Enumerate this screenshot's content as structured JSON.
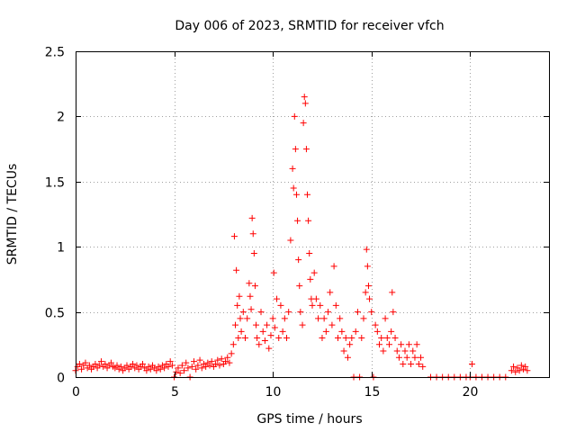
{
  "chart_data": {
    "type": "scatter",
    "title": "Day 006 of 2023, SRMTID for receiver vfch",
    "xlabel": "GPS time / hours",
    "ylabel": "SRMTID / TECUs",
    "xlim": [
      0,
      24
    ],
    "ylim": [
      0,
      2.5
    ],
    "x_ticks": [
      0,
      5,
      10,
      15,
      20
    ],
    "x_tick_labels": [
      "0",
      "5",
      "10",
      "15",
      "20"
    ],
    "y_ticks": [
      0,
      0.5,
      1,
      1.5,
      2,
      2.5
    ],
    "y_tick_labels": [
      "0",
      "0.5",
      "1",
      "1.5",
      "2",
      "2.5"
    ],
    "grid": true,
    "marker": "plus",
    "series": [
      {
        "name": "SRMTID",
        "color": "#ff0000",
        "points": [
          [
            0.0,
            0.05
          ],
          [
            0.1,
            0.08
          ],
          [
            0.2,
            0.1
          ],
          [
            0.3,
            0.06
          ],
          [
            0.4,
            0.09
          ],
          [
            0.5,
            0.11
          ],
          [
            0.6,
            0.07
          ],
          [
            0.7,
            0.09
          ],
          [
            0.8,
            0.06
          ],
          [
            0.9,
            0.08
          ],
          [
            1.0,
            0.1
          ],
          [
            1.1,
            0.07
          ],
          [
            1.2,
            0.09
          ],
          [
            1.3,
            0.12
          ],
          [
            1.4,
            0.08
          ],
          [
            1.5,
            0.1
          ],
          [
            1.6,
            0.07
          ],
          [
            1.7,
            0.09
          ],
          [
            1.8,
            0.11
          ],
          [
            1.9,
            0.08
          ],
          [
            2.0,
            0.07
          ],
          [
            2.1,
            0.09
          ],
          [
            2.2,
            0.06
          ],
          [
            2.3,
            0.08
          ],
          [
            2.4,
            0.05
          ],
          [
            2.5,
            0.07
          ],
          [
            2.6,
            0.09
          ],
          [
            2.7,
            0.06
          ],
          [
            2.8,
            0.08
          ],
          [
            2.9,
            0.1
          ],
          [
            3.0,
            0.07
          ],
          [
            3.1,
            0.09
          ],
          [
            3.2,
            0.06
          ],
          [
            3.3,
            0.08
          ],
          [
            3.4,
            0.1
          ],
          [
            3.5,
            0.07
          ],
          [
            3.6,
            0.05
          ],
          [
            3.7,
            0.08
          ],
          [
            3.8,
            0.06
          ],
          [
            3.9,
            0.09
          ],
          [
            4.0,
            0.07
          ],
          [
            4.1,
            0.05
          ],
          [
            4.2,
            0.08
          ],
          [
            4.3,
            0.06
          ],
          [
            4.4,
            0.09
          ],
          [
            4.5,
            0.07
          ],
          [
            4.6,
            0.1
          ],
          [
            4.7,
            0.08
          ],
          [
            4.8,
            0.12
          ],
          [
            4.9,
            0.09
          ],
          [
            5.0,
            0.0
          ],
          [
            5.1,
            0.04
          ],
          [
            5.2,
            0.07
          ],
          [
            5.3,
            0.03
          ],
          [
            5.4,
            0.09
          ],
          [
            5.5,
            0.05
          ],
          [
            5.6,
            0.11
          ],
          [
            5.7,
            0.07
          ],
          [
            5.8,
            0.0
          ],
          [
            5.9,
            0.08
          ],
          [
            6.0,
            0.12
          ],
          [
            6.1,
            0.06
          ],
          [
            6.2,
            0.09
          ],
          [
            6.3,
            0.13
          ],
          [
            6.4,
            0.07
          ],
          [
            6.5,
            0.1
          ],
          [
            6.6,
            0.08
          ],
          [
            6.7,
            0.11
          ],
          [
            6.8,
            0.09
          ],
          [
            6.9,
            0.12
          ],
          [
            7.0,
            0.08
          ],
          [
            7.1,
            0.1
          ],
          [
            7.2,
            0.13
          ],
          [
            7.3,
            0.09
          ],
          [
            7.4,
            0.14
          ],
          [
            7.5,
            0.1
          ],
          [
            7.6,
            0.12
          ],
          [
            7.7,
            0.15
          ],
          [
            7.8,
            0.11
          ],
          [
            7.9,
            0.18
          ],
          [
            8.0,
            0.25
          ],
          [
            8.05,
            1.08
          ],
          [
            8.1,
            0.4
          ],
          [
            8.15,
            0.82
          ],
          [
            8.2,
            0.55
          ],
          [
            8.25,
            0.3
          ],
          [
            8.3,
            0.62
          ],
          [
            8.35,
            0.45
          ],
          [
            8.4,
            0.35
          ],
          [
            8.5,
            0.5
          ],
          [
            8.6,
            0.3
          ],
          [
            8.7,
            0.45
          ],
          [
            8.8,
            0.72
          ],
          [
            8.85,
            0.62
          ],
          [
            8.9,
            0.52
          ],
          [
            8.95,
            1.22
          ],
          [
            9.0,
            1.1
          ],
          [
            9.05,
            0.95
          ],
          [
            9.1,
            0.7
          ],
          [
            9.15,
            0.4
          ],
          [
            9.2,
            0.3
          ],
          [
            9.3,
            0.25
          ],
          [
            9.4,
            0.5
          ],
          [
            9.5,
            0.35
          ],
          [
            9.6,
            0.28
          ],
          [
            9.7,
            0.4
          ],
          [
            9.8,
            0.22
          ],
          [
            9.9,
            0.32
          ],
          [
            10.0,
            0.45
          ],
          [
            10.05,
            0.8
          ],
          [
            10.1,
            0.38
          ],
          [
            10.2,
            0.6
          ],
          [
            10.3,
            0.3
          ],
          [
            10.4,
            0.55
          ],
          [
            10.5,
            0.35
          ],
          [
            10.6,
            0.45
          ],
          [
            10.7,
            0.3
          ],
          [
            10.8,
            0.5
          ],
          [
            10.9,
            1.05
          ],
          [
            11.0,
            1.6
          ],
          [
            11.05,
            1.45
          ],
          [
            11.1,
            2.0
          ],
          [
            11.15,
            1.75
          ],
          [
            11.2,
            1.4
          ],
          [
            11.25,
            1.2
          ],
          [
            11.3,
            0.9
          ],
          [
            11.35,
            0.7
          ],
          [
            11.4,
            0.5
          ],
          [
            11.5,
            0.4
          ],
          [
            11.55,
            1.95
          ],
          [
            11.6,
            2.15
          ],
          [
            11.65,
            2.1
          ],
          [
            11.7,
            1.75
          ],
          [
            11.75,
            1.4
          ],
          [
            11.8,
            1.2
          ],
          [
            11.85,
            0.95
          ],
          [
            11.9,
            0.75
          ],
          [
            11.95,
            0.6
          ],
          [
            12.0,
            0.55
          ],
          [
            12.1,
            0.8
          ],
          [
            12.2,
            0.6
          ],
          [
            12.3,
            0.45
          ],
          [
            12.4,
            0.55
          ],
          [
            12.5,
            0.3
          ],
          [
            12.6,
            0.45
          ],
          [
            12.7,
            0.35
          ],
          [
            12.8,
            0.5
          ],
          [
            12.9,
            0.65
          ],
          [
            13.0,
            0.4
          ],
          [
            13.1,
            0.85
          ],
          [
            13.2,
            0.55
          ],
          [
            13.3,
            0.3
          ],
          [
            13.4,
            0.45
          ],
          [
            13.5,
            0.35
          ],
          [
            13.6,
            0.2
          ],
          [
            13.7,
            0.3
          ],
          [
            13.8,
            0.15
          ],
          [
            13.9,
            0.25
          ],
          [
            14.0,
            0.3
          ],
          [
            14.1,
            0.0
          ],
          [
            14.2,
            0.35
          ],
          [
            14.3,
            0.5
          ],
          [
            14.4,
            0.0
          ],
          [
            14.5,
            0.3
          ],
          [
            14.6,
            0.45
          ],
          [
            14.7,
            0.65
          ],
          [
            14.75,
            0.98
          ],
          [
            14.8,
            0.85
          ],
          [
            14.85,
            0.7
          ],
          [
            14.9,
            0.6
          ],
          [
            15.0,
            0.5
          ],
          [
            15.1,
            0.0
          ],
          [
            15.2,
            0.4
          ],
          [
            15.3,
            0.35
          ],
          [
            15.4,
            0.25
          ],
          [
            15.5,
            0.3
          ],
          [
            15.6,
            0.2
          ],
          [
            15.7,
            0.45
          ],
          [
            15.8,
            0.3
          ],
          [
            15.9,
            0.25
          ],
          [
            16.0,
            0.35
          ],
          [
            16.05,
            0.65
          ],
          [
            16.1,
            0.5
          ],
          [
            16.2,
            0.3
          ],
          [
            16.3,
            0.2
          ],
          [
            16.4,
            0.15
          ],
          [
            16.5,
            0.25
          ],
          [
            16.6,
            0.1
          ],
          [
            16.7,
            0.2
          ],
          [
            16.8,
            0.15
          ],
          [
            16.9,
            0.25
          ],
          [
            17.0,
            0.1
          ],
          [
            17.1,
            0.2
          ],
          [
            17.2,
            0.15
          ],
          [
            17.3,
            0.25
          ],
          [
            17.4,
            0.1
          ],
          [
            17.5,
            0.15
          ],
          [
            17.6,
            0.08
          ],
          [
            18.0,
            0.0
          ],
          [
            18.3,
            0.0
          ],
          [
            18.6,
            0.0
          ],
          [
            18.9,
            0.0
          ],
          [
            19.2,
            0.0
          ],
          [
            19.5,
            0.0
          ],
          [
            19.8,
            0.0
          ],
          [
            20.0,
            0.0
          ],
          [
            20.1,
            0.1
          ],
          [
            20.3,
            0.0
          ],
          [
            20.6,
            0.0
          ],
          [
            20.9,
            0.0
          ],
          [
            21.2,
            0.0
          ],
          [
            21.5,
            0.0
          ],
          [
            21.8,
            0.0
          ],
          [
            22.1,
            0.05
          ],
          [
            22.2,
            0.08
          ],
          [
            22.3,
            0.04
          ],
          [
            22.4,
            0.07
          ],
          [
            22.5,
            0.05
          ],
          [
            22.6,
            0.09
          ],
          [
            22.7,
            0.06
          ],
          [
            22.8,
            0.08
          ],
          [
            22.9,
            0.05
          ]
        ]
      }
    ]
  }
}
